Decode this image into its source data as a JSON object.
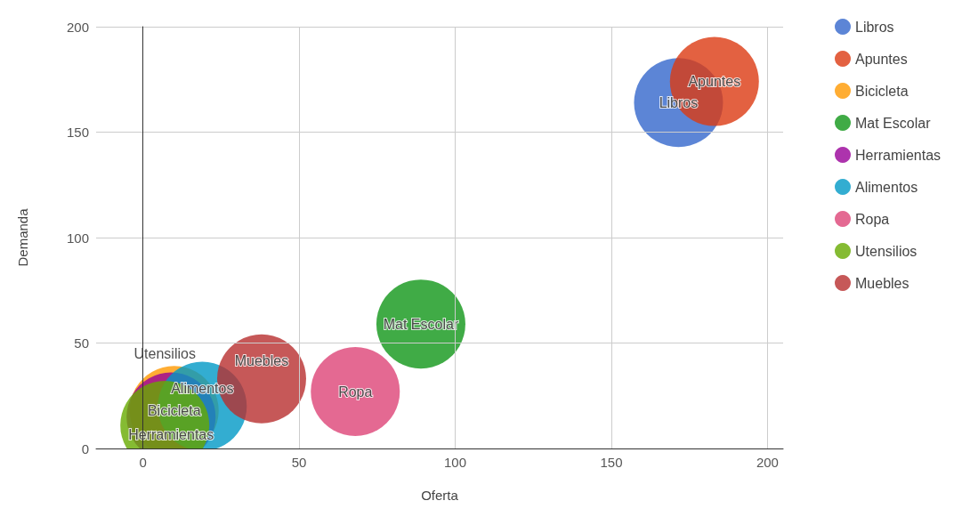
{
  "chart_data": {
    "type": "bubble",
    "xlabel": "Oferta",
    "ylabel": "Demanda",
    "xlim": [
      -15,
      205
    ],
    "xticks": [
      0,
      50,
      100,
      150,
      200
    ],
    "ylim": [
      0,
      200
    ],
    "yticks": [
      0,
      50,
      100,
      150,
      200
    ],
    "grid": true,
    "legend": "right",
    "marker": "circle",
    "series": [
      {
        "name": "Libros",
        "color": "#3366cc",
        "x": [
          171.5
        ],
        "values": [
          164
        ],
        "sizes": [
          1
        ]
      },
      {
        "name": "Apuntes",
        "color": "#dc3912",
        "x": [
          183
        ],
        "values": [
          174
        ],
        "sizes": [
          1
        ]
      },
      {
        "name": "Bicicleta",
        "color": "#ff9900",
        "x": [
          10
        ],
        "values": [
          18
        ],
        "sizes": [
          1
        ]
      },
      {
        "name": "Mat Escolar",
        "color": "#109618",
        "x": [
          89
        ],
        "values": [
          59
        ],
        "sizes": [
          1
        ]
      },
      {
        "name": "Herramientas",
        "color": "#990099",
        "x": [
          9
        ],
        "values": [
          15
        ],
        "sizes": [
          1
        ]
      },
      {
        "name": "Alimentos",
        "color": "#0099c6",
        "x": [
          19
        ],
        "values": [
          20
        ],
        "sizes": [
          1
        ]
      },
      {
        "name": "Ropa",
        "color": "#dd4477",
        "x": [
          68
        ],
        "values": [
          27
        ],
        "sizes": [
          1
        ]
      },
      {
        "name": "Utensilios",
        "color": "#66aa00",
        "x": [
          7
        ],
        "values": [
          11
        ],
        "sizes": [
          1
        ]
      },
      {
        "name": "Muebles",
        "color": "#b82e2e",
        "x": [
          38
        ],
        "values": [
          33
        ],
        "sizes": [
          1
        ]
      }
    ]
  }
}
